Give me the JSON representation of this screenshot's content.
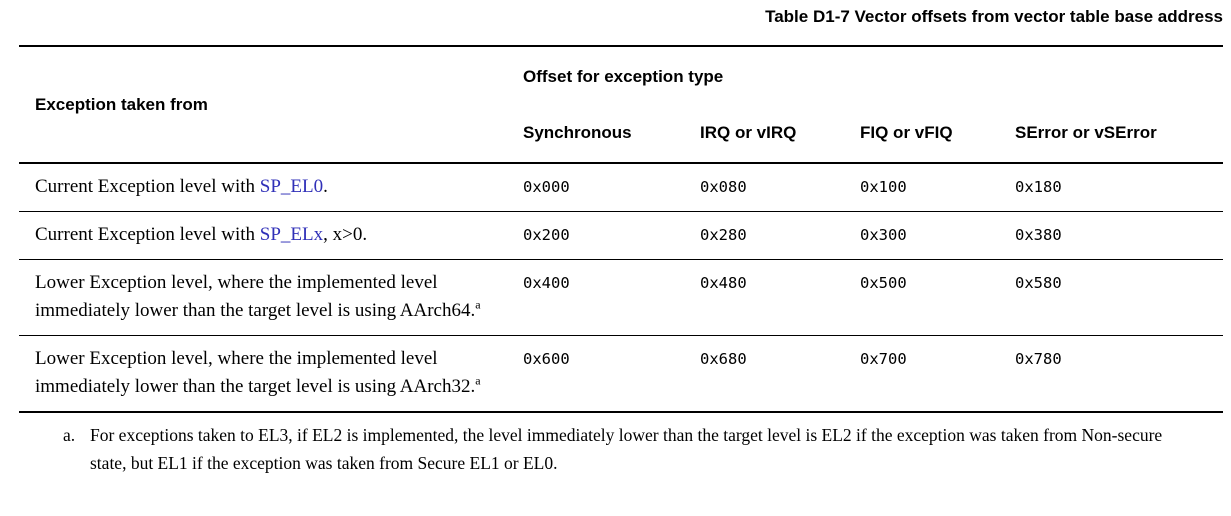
{
  "title": "Table D1-7 Vector offsets from vector table base address",
  "table": {
    "col1_header": "Exception taken from",
    "group_header": "Offset for exception type",
    "offset_columns": [
      "Synchronous",
      "IRQ or vIRQ",
      "FIQ or vFIQ",
      "SError or vSError"
    ],
    "rows": [
      {
        "label_prefix": "Current Exception level with ",
        "label_link": "SP_EL0",
        "label_suffix": ".",
        "footnote_marker": "",
        "offsets": [
          "0x000",
          "0x080",
          "0x100",
          "0x180"
        ]
      },
      {
        "label_prefix": "Current Exception level with ",
        "label_link": "SP_ELx",
        "label_suffix": ", x>0.",
        "footnote_marker": "",
        "offsets": [
          "0x200",
          "0x280",
          "0x300",
          "0x380"
        ]
      },
      {
        "label_prefix": "Lower Exception level, where the implemented level immediately lower than the target level is using AArch64.",
        "label_link": "",
        "label_suffix": "",
        "footnote_marker": "a",
        "offsets": [
          "0x400",
          "0x480",
          "0x500",
          "0x580"
        ]
      },
      {
        "label_prefix": "Lower Exception level, where the implemented level immediately lower than the target level is using AArch32.",
        "label_link": "",
        "label_suffix": "",
        "footnote_marker": "a",
        "offsets": [
          "0x600",
          "0x680",
          "0x700",
          "0x780"
        ]
      }
    ]
  },
  "footnote": {
    "marker": "a.",
    "text": "For exceptions taken to EL3, if EL2 is implemented, the level immediately lower than the target level is EL2 if the exception was taken from Non-secure state, but EL1 if the exception was taken from Secure EL1 or EL0."
  },
  "colors": {
    "text": "#000000",
    "link": "#3030b8",
    "rule": "#000000"
  }
}
